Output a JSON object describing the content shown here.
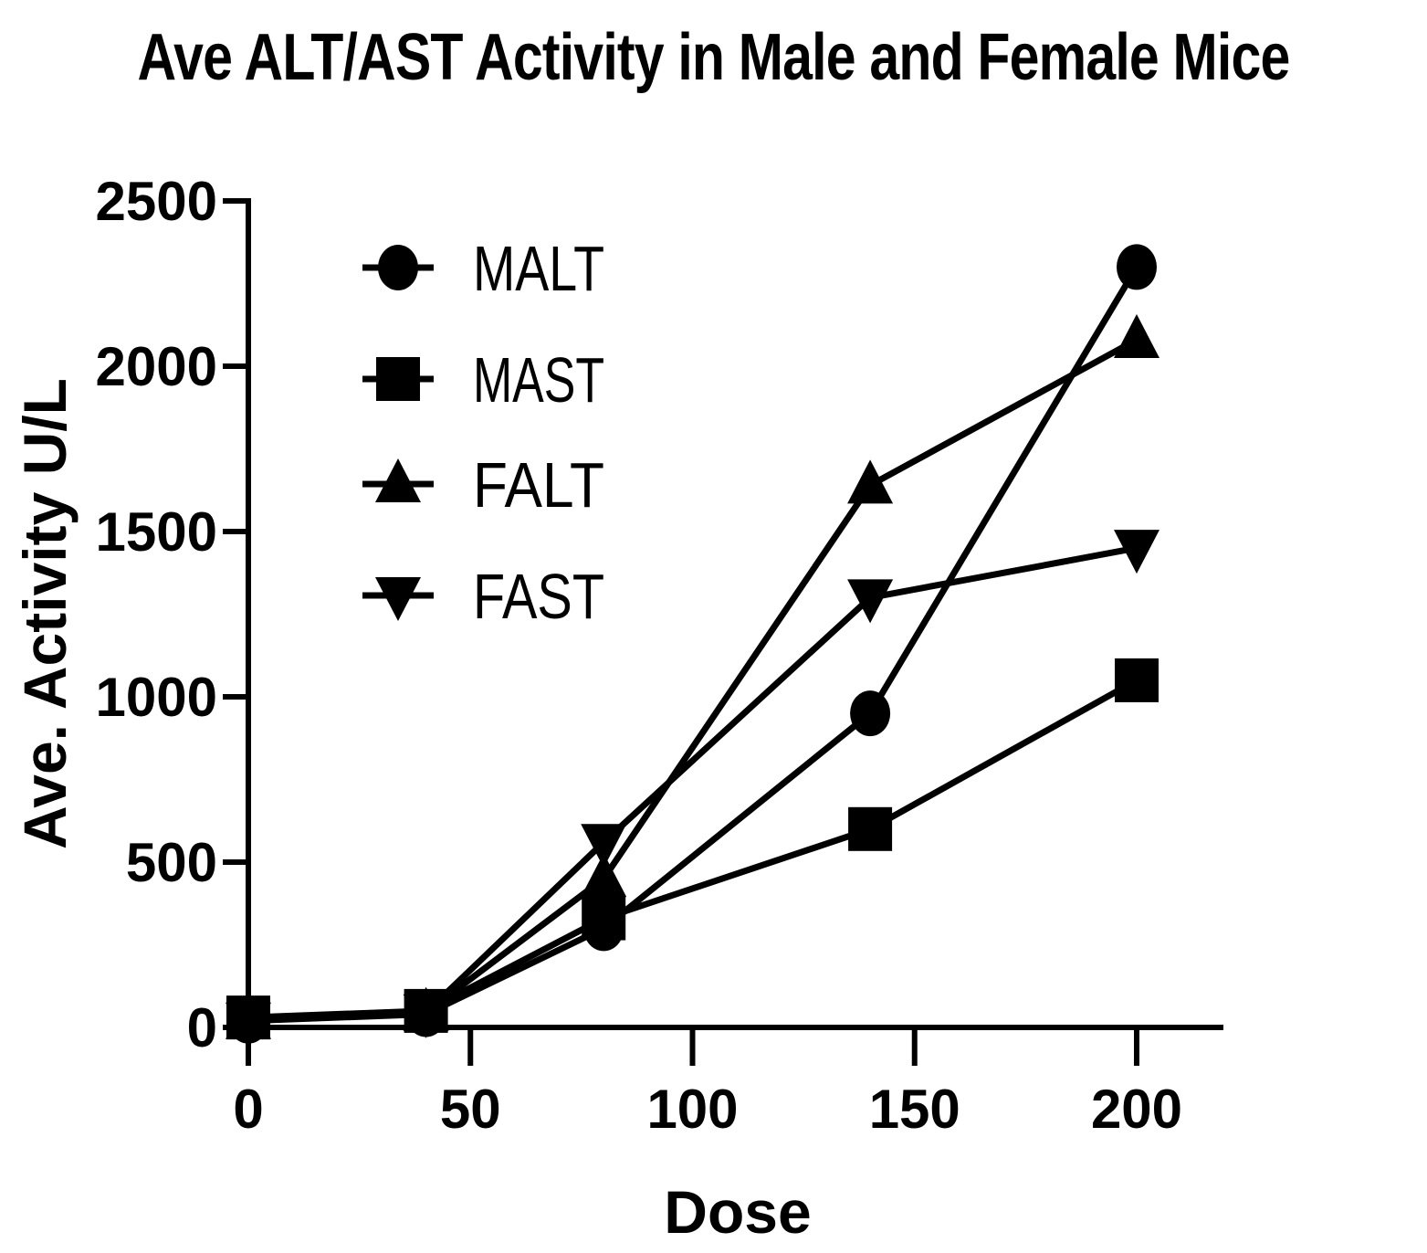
{
  "chart_data": {
    "type": "line",
    "title": "Ave ALT/AST Activity in Male and Female Mice",
    "xlabel": "Dose",
    "ylabel": "Ave. Activity U/L",
    "xlim": [
      0,
      220
    ],
    "ylim": [
      0,
      2500
    ],
    "x_ticks": [
      0,
      50,
      100,
      150,
      200
    ],
    "y_ticks": [
      0,
      500,
      1000,
      1500,
      2000,
      2500
    ],
    "x": [
      0,
      40,
      80,
      140,
      200
    ],
    "series": [
      {
        "name": "MALT",
        "marker": "circle",
        "values": [
          20,
          40,
          300,
          950,
          2300
        ]
      },
      {
        "name": "MAST",
        "marker": "square",
        "values": [
          30,
          50,
          330,
          600,
          1050
        ]
      },
      {
        "name": "FALT",
        "marker": "triangle-up",
        "values": [
          20,
          45,
          450,
          1640,
          2080
        ]
      },
      {
        "name": "FAST",
        "marker": "triangle-down",
        "values": [
          20,
          45,
          560,
          1300,
          1450
        ]
      }
    ],
    "legend_position": "top-left",
    "grid": false,
    "line_color": "#000000"
  }
}
